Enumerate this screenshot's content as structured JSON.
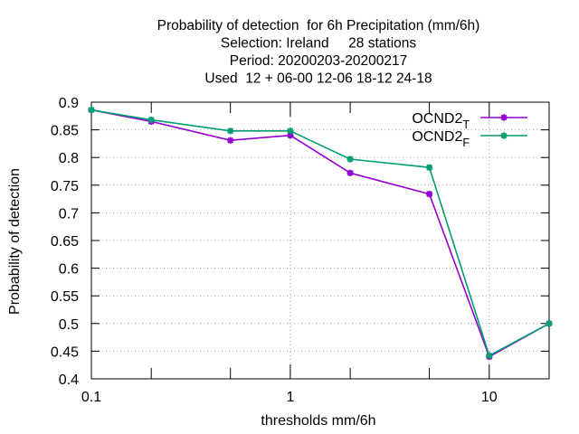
{
  "chart_data": {
    "type": "line",
    "title_lines": [
      "Probability of detection  for 6h Precipitation (mm/6h)",
      "Selection: Ireland     28 stations",
      "Period: 20200203-20200217",
      "Used  12 + 06-00 12-06 18-12 24-18"
    ],
    "xlabel": "thresholds mm/6h",
    "ylabel": "Probability of detection",
    "x_scale": "log",
    "xlim": [
      0.1,
      20
    ],
    "ylim": [
      0.4,
      0.9
    ],
    "x_ticks": [
      {
        "value": 0.1,
        "label": "0.1"
      },
      {
        "value": 1,
        "label": "1"
      },
      {
        "value": 10,
        "label": "10"
      }
    ],
    "x_minor_ticks": [
      0.2,
      0.5,
      2,
      5,
      20
    ],
    "y_ticks": [
      {
        "value": 0.4,
        "label": "0.4"
      },
      {
        "value": 0.45,
        "label": "0.45"
      },
      {
        "value": 0.5,
        "label": "0.5"
      },
      {
        "value": 0.55,
        "label": "0.55"
      },
      {
        "value": 0.6,
        "label": "0.6"
      },
      {
        "value": 0.65,
        "label": "0.65"
      },
      {
        "value": 0.7,
        "label": "0.7"
      },
      {
        "value": 0.75,
        "label": "0.75"
      },
      {
        "value": 0.8,
        "label": "0.8"
      },
      {
        "value": 0.85,
        "label": "0.85"
      },
      {
        "value": 0.9,
        "label": "0.9"
      }
    ],
    "grid": true,
    "legend_position": "top-right",
    "series": [
      {
        "name": "OCND2",
        "subscript": "T",
        "color": "#9400d3",
        "x": [
          0.1,
          0.2,
          0.5,
          1,
          2,
          5,
          10,
          20
        ],
        "y": [
          0.886,
          0.865,
          0.831,
          0.84,
          0.772,
          0.734,
          0.44,
          0.5
        ]
      },
      {
        "name": "OCND2",
        "subscript": "F",
        "color": "#009e73",
        "x": [
          0.1,
          0.2,
          0.5,
          1,
          2,
          5,
          10,
          20
        ],
        "y": [
          0.886,
          0.868,
          0.848,
          0.848,
          0.797,
          0.782,
          0.442,
          0.5
        ]
      }
    ]
  }
}
